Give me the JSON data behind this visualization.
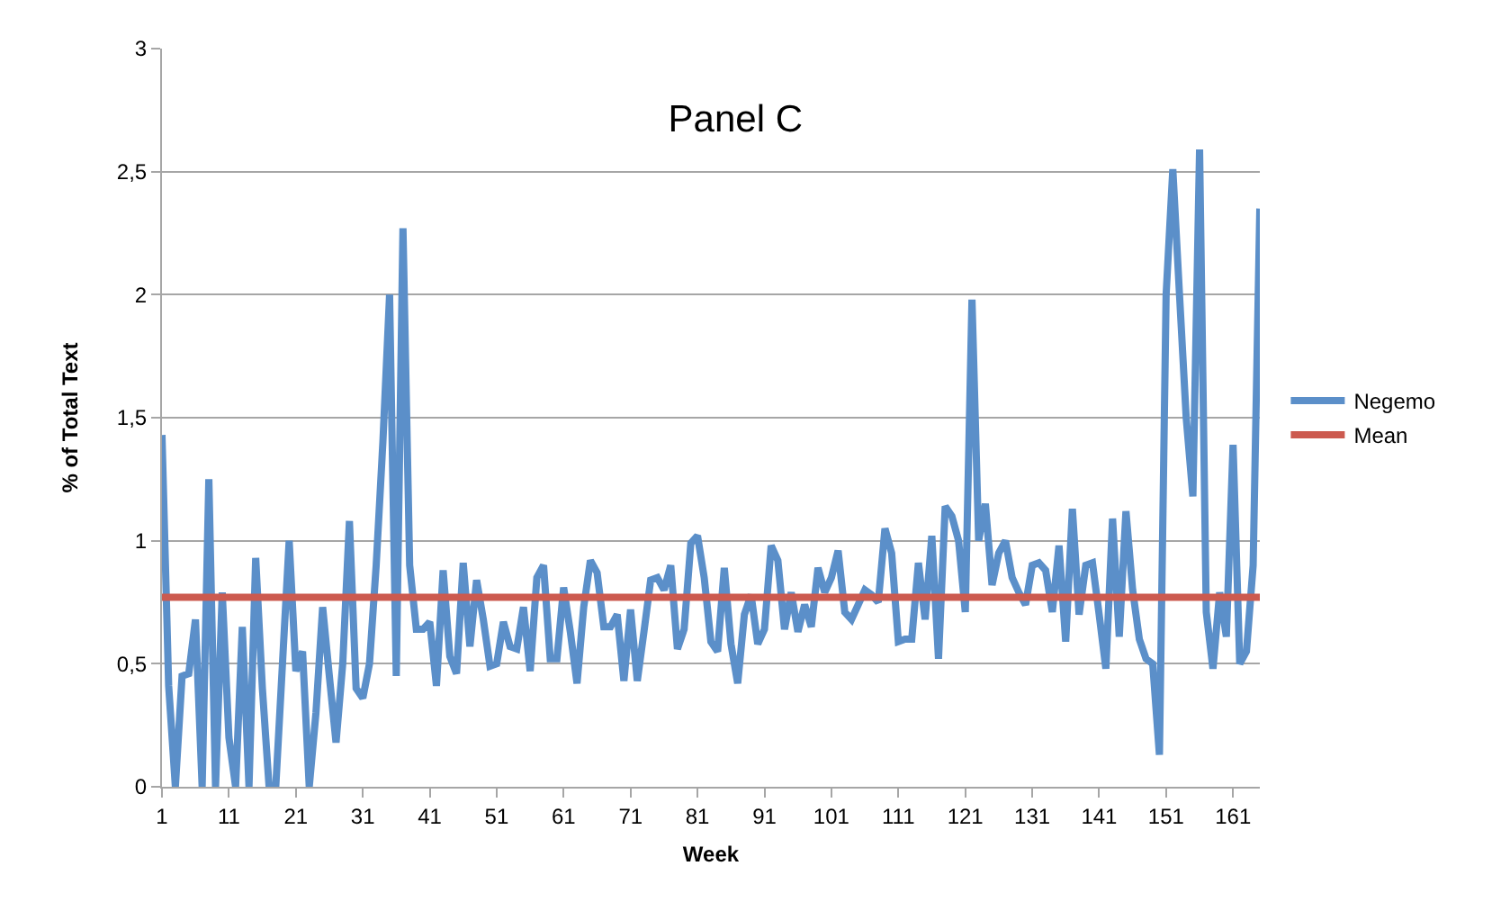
{
  "chart_data": {
    "type": "line",
    "title": "Panel C",
    "xlabel": "Week",
    "ylabel": "% of Total Text",
    "x": [
      1,
      2,
      3,
      4,
      5,
      6,
      7,
      8,
      9,
      10,
      11,
      12,
      13,
      14,
      15,
      16,
      17,
      18,
      19,
      20,
      21,
      22,
      23,
      24,
      25,
      26,
      27,
      28,
      29,
      30,
      31,
      32,
      33,
      34,
      35,
      36,
      37,
      38,
      39,
      40,
      41,
      42,
      43,
      44,
      45,
      46,
      47,
      48,
      49,
      50,
      51,
      52,
      53,
      54,
      55,
      56,
      57,
      58,
      59,
      60,
      61,
      62,
      63,
      64,
      65,
      66,
      67,
      68,
      69,
      70,
      71,
      72,
      73,
      74,
      75,
      76,
      77,
      78,
      79,
      80,
      81,
      82,
      83,
      84,
      85,
      86,
      87,
      88,
      89,
      90,
      91,
      92,
      93,
      94,
      95,
      96,
      97,
      98,
      99,
      100,
      101,
      102,
      103,
      104,
      105,
      106,
      107,
      108,
      109,
      110,
      111,
      112,
      113,
      114,
      115,
      116,
      117,
      118,
      119,
      120,
      121,
      122,
      123,
      124,
      125,
      126,
      127,
      128,
      129,
      130,
      131,
      132,
      133,
      134,
      135,
      136,
      137,
      138,
      139,
      140,
      141,
      142,
      143,
      144,
      145,
      146,
      147,
      148,
      149,
      150,
      151,
      152,
      153,
      154,
      155,
      156,
      157,
      158,
      159,
      160,
      161,
      162,
      163,
      164,
      165
    ],
    "series": [
      {
        "name": "Negemo",
        "color": "#5b8fc9",
        "values": [
          1.43,
          0.41,
          0,
          0.45,
          0.46,
          0.68,
          0,
          1.25,
          0,
          0.79,
          0.2,
          0,
          0.65,
          0,
          0.93,
          0.4,
          0,
          0,
          0.5,
          1.0,
          0.47,
          0.55,
          0,
          0.3,
          0.73,
          0.45,
          0.18,
          0.5,
          1.08,
          0.4,
          0.36,
          0.5,
          0.9,
          1.4,
          2.0,
          0.45,
          2.27,
          0.9,
          0.64,
          0.64,
          0.67,
          0.41,
          0.88,
          0.53,
          0.46,
          0.91,
          0.57,
          0.84,
          0.68,
          0.49,
          0.5,
          0.67,
          0.57,
          0.56,
          0.73,
          0.47,
          0.85,
          0.9,
          0.52,
          0.52,
          0.81,
          0.63,
          0.42,
          0.73,
          0.92,
          0.87,
          0.65,
          0.65,
          0.7,
          0.43,
          0.72,
          0.43,
          0.63,
          0.84,
          0.85,
          0.8,
          0.9,
          0.56,
          0.64,
          0.99,
          1.02,
          0.85,
          0.59,
          0.55,
          0.89,
          0.58,
          0.42,
          0.7,
          0.78,
          0.58,
          0.64,
          0.98,
          0.92,
          0.64,
          0.79,
          0.63,
          0.74,
          0.65,
          0.89,
          0.79,
          0.85,
          0.96,
          0.71,
          0.68,
          0.74,
          0.8,
          0.78,
          0.75,
          1.05,
          0.95,
          0.59,
          0.6,
          0.6,
          0.91,
          0.68,
          1.02,
          0.52,
          1.14,
          1.1,
          1.0,
          0.71,
          1.98,
          1.0,
          1.15,
          0.82,
          0.95,
          1.0,
          0.85,
          0.79,
          0.74,
          0.9,
          0.91,
          0.88,
          0.71,
          0.98,
          0.59,
          1.13,
          0.7,
          0.9,
          0.91,
          0.7,
          0.48,
          1.09,
          0.61,
          1.12,
          0.8,
          0.6,
          0.52,
          0.5,
          0.13,
          2.0,
          2.51,
          2.0,
          1.5,
          1.18,
          2.59,
          0.71,
          0.48,
          0.79,
          0.61,
          1.39,
          0.5,
          0.55,
          0.9,
          2.35
        ]
      },
      {
        "name": "Mean",
        "color": "#cc5a4f",
        "x": [
          1,
          165
        ],
        "values": [
          0.77,
          0.77
        ]
      }
    ],
    "xlim": [
      1,
      165
    ],
    "xticks": [
      1,
      11,
      21,
      31,
      41,
      51,
      61,
      71,
      81,
      91,
      101,
      111,
      121,
      131,
      141,
      151,
      161
    ],
    "ylim": [
      0,
      3
    ],
    "yticks": [
      0,
      {
        "value": 0.5,
        "label": "0,5"
      },
      1,
      {
        "value": 1.5,
        "label": "1,5"
      },
      2,
      {
        "value": 2.5,
        "label": "2,5"
      },
      3
    ],
    "grid": "y",
    "legend": "right",
    "marker": "none",
    "line_style": "solid"
  }
}
